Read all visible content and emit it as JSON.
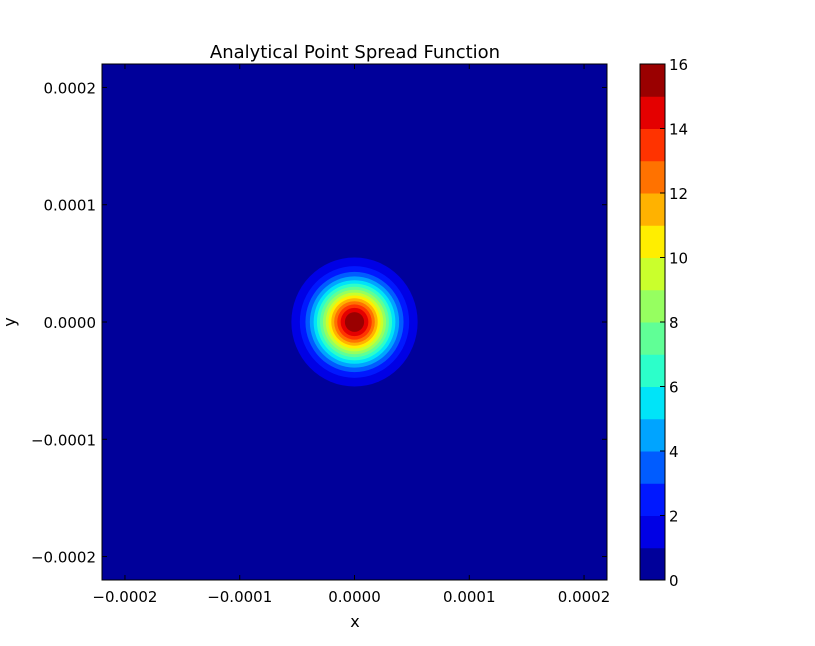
{
  "chart_data": {
    "type": "contourf",
    "title": "Analytical Point Spread Function",
    "xlabel": "x",
    "ylabel": "y",
    "xlim": [
      -0.00022,
      0.00022
    ],
    "ylim": [
      -0.00022,
      0.00022
    ],
    "xticks": [
      -0.0002,
      -0.0001,
      0.0,
      0.0001,
      0.0002
    ],
    "xtick_labels": [
      "−0.0002",
      "−0.0001",
      "0.0000",
      "0.0001",
      "0.0002"
    ],
    "yticks": [
      -0.0002,
      -0.0001,
      0.0,
      0.0001,
      0.0002
    ],
    "ytick_labels": [
      "−0.0002",
      "−0.0001",
      "0.0000",
      "0.0001",
      "0.0002"
    ],
    "center": [
      0.0,
      0.0
    ],
    "peak_value": 16,
    "approx_outer_radius": 5.5e-05,
    "colormap": "jet",
    "levels": [
      0,
      1,
      2,
      3,
      4,
      5,
      6,
      7,
      8,
      9,
      10,
      11,
      12,
      13,
      14,
      15,
      16
    ],
    "colorbar_ticks": [
      0,
      2,
      4,
      6,
      8,
      10,
      12,
      14,
      16
    ],
    "colorbar_tick_labels": [
      "0",
      "2",
      "4",
      "6",
      "8",
      "10",
      "12",
      "14",
      "16"
    ],
    "band_colors": [
      "#00009a",
      "#0000e5",
      "#0018ff",
      "#005cff",
      "#00a4ff",
      "#00e4f8",
      "#2cffca",
      "#60ff96",
      "#96ff60",
      "#caff2c",
      "#ffee00",
      "#ffb200",
      "#ff7200",
      "#ff3300",
      "#e40000",
      "#9a0000"
    ],
    "grid": false
  }
}
